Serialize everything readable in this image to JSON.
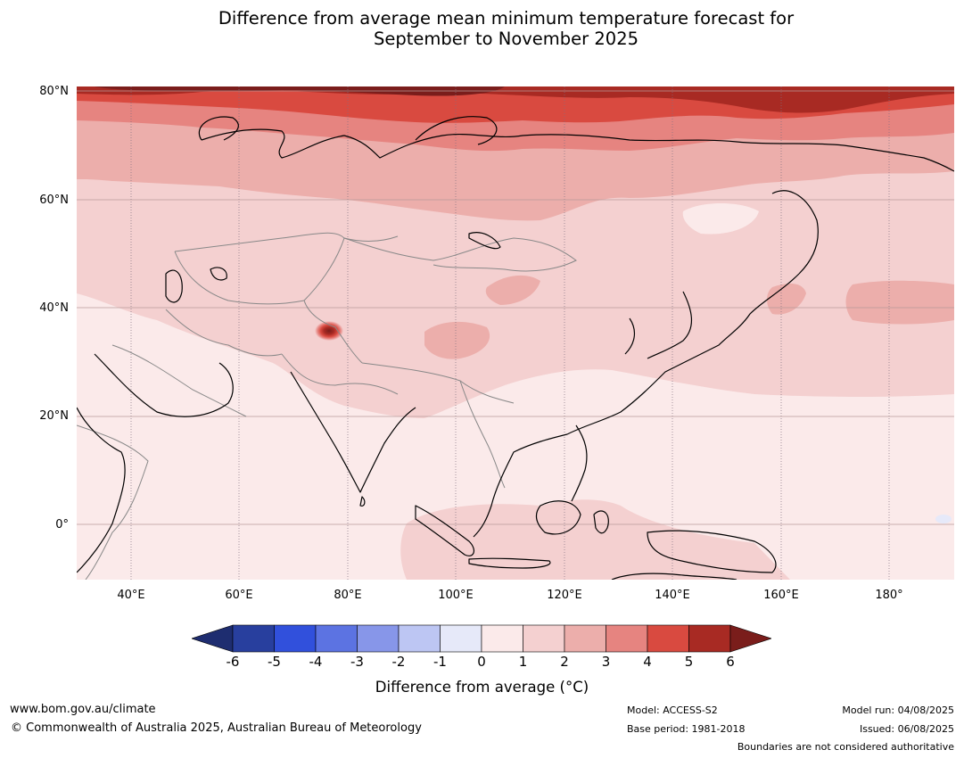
{
  "title": {
    "line1": "Difference from average mean minimum temperature forecast for",
    "line2": "September to November 2025"
  },
  "map": {
    "lat_labels": [
      "80°N",
      "60°N",
      "40°N",
      "20°N",
      "0°"
    ],
    "lon_labels": [
      "40°E",
      "60°E",
      "80°E",
      "100°E",
      "120°E",
      "140°E",
      "160°E",
      "180°"
    ],
    "lat_range": [
      -10,
      80
    ],
    "lon_range": [
      30,
      192
    ]
  },
  "colorbar": {
    "ticks": [
      "-6",
      "-5",
      "-4",
      "-3",
      "-2",
      "-1",
      "0",
      "1",
      "2",
      "3",
      "4",
      "5",
      "6"
    ],
    "colors": [
      "#283f9e",
      "#3150dc",
      "#5c73e2",
      "#8796e9",
      "#bdc6f3",
      "#e6e9f9",
      "#fbeaea",
      "#f4d0d0",
      "#ecaeab",
      "#e68480",
      "#d94a40",
      "#a82a23"
    ],
    "extend_low": "#1e2d70",
    "extend_high": "#7a1d1b",
    "label": "Difference from average (°C)"
  },
  "footer": {
    "website": "www.bom.gov.au/climate",
    "copyright": "© Commonwealth of Australia 2025, Australian Bureau of Meteorology",
    "model": "Model: ACCESS-S2",
    "base_period": "Base period: 1981-2018",
    "model_run": "Model run: 04/08/2025",
    "issued": "Issued: 06/08/2025",
    "disclaimer": "Boundaries are not considered authoritative"
  }
}
